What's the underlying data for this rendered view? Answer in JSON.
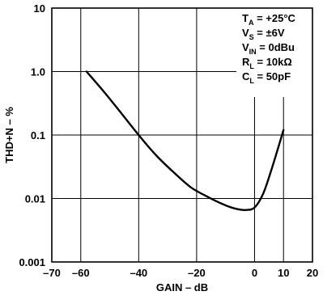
{
  "chart_data": {
    "type": "line",
    "xlabel": "GAIN – dB",
    "ylabel": "THD+N – %",
    "xlim": [
      -70,
      20
    ],
    "ylim": [
      0.001,
      10
    ],
    "y_scale": "log",
    "grid": true,
    "x_ticks": [
      -70,
      -60,
      -40,
      -20,
      0,
      10,
      20
    ],
    "x_tick_labels": [
      "–70",
      "–60",
      "–40",
      "–20",
      "0",
      "10",
      "20"
    ],
    "y_ticks": [
      10,
      1,
      0.1,
      0.01,
      0.001
    ],
    "y_tick_labels": [
      "10",
      "1.0",
      "0.1",
      "0.01",
      "0.001"
    ],
    "series": [
      {
        "x": [
          -58,
          -52,
          -46,
          -40,
          -34,
          -28,
          -22,
          -16,
          -10,
          -6,
          -3,
          0,
          3,
          6,
          10
        ],
        "y": [
          1.0,
          0.48,
          0.22,
          0.1,
          0.048,
          0.026,
          0.015,
          0.0105,
          0.0078,
          0.0068,
          0.0066,
          0.0072,
          0.012,
          0.03,
          0.12
        ]
      }
    ],
    "legend_placement": "top-right",
    "conditions": [
      {
        "main": "T",
        "sub": "A",
        "rest": " = +25°C"
      },
      {
        "main": "V",
        "sub": "S",
        "rest": " = ±6V"
      },
      {
        "main": "V",
        "sub": "IN",
        "rest": " = 0dBu"
      },
      {
        "main": "R",
        "sub": "L",
        "rest": " = 10kΩ"
      },
      {
        "main": "C",
        "sub": "L",
        "rest": " = 50pF"
      }
    ]
  }
}
